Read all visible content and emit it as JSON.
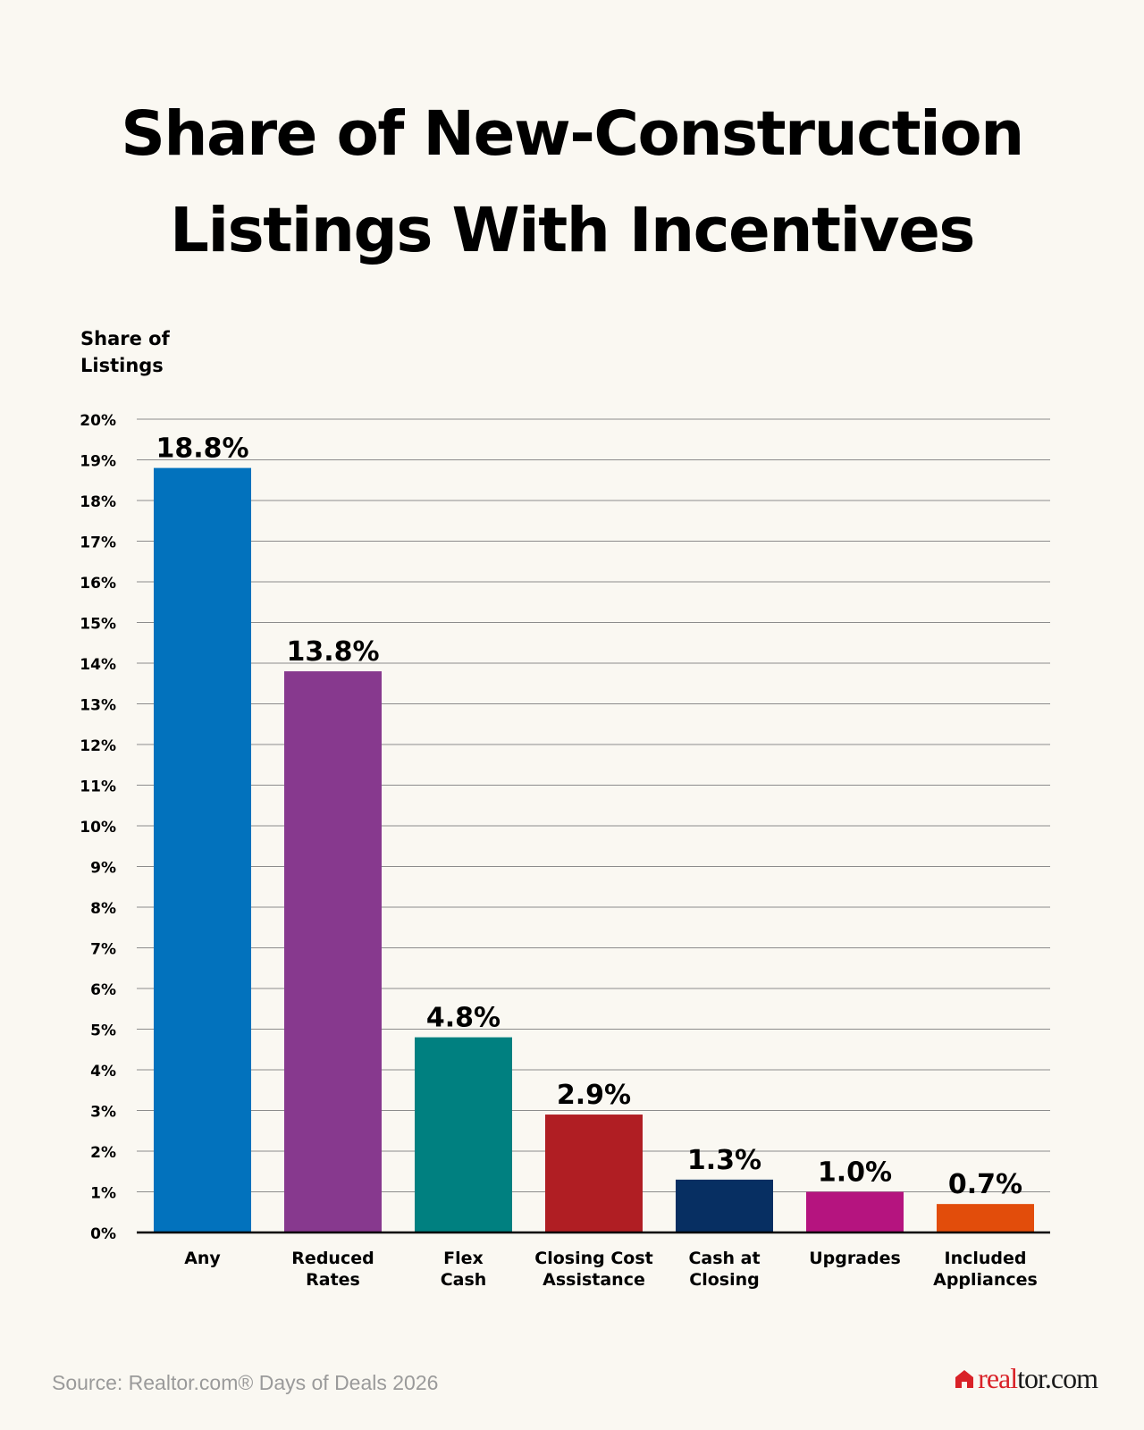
{
  "chart_data": {
    "type": "bar",
    "title_lines": [
      "Share of New-Construction",
      "Listings With Incentives"
    ],
    "ylabel_lines": [
      "Share of",
      "Listings"
    ],
    "ylim": [
      0,
      20
    ],
    "ytick_step": 1,
    "ytick_suffix": "%",
    "grid": true,
    "categories": [
      [
        "Any"
      ],
      [
        "Reduced",
        "Rates"
      ],
      [
        "Flex",
        "Cash"
      ],
      [
        "Closing Cost",
        "Assistance"
      ],
      [
        "Cash at",
        "Closing"
      ],
      [
        "Upgrades"
      ],
      [
        "Included",
        "Appliances"
      ]
    ],
    "values": [
      18.8,
      13.8,
      4.8,
      2.9,
      1.3,
      1.0,
      0.7
    ],
    "value_labels": [
      "18.8%",
      "13.8%",
      "4.8%",
      "2.9%",
      "1.3%",
      "1.0%",
      "0.7%"
    ],
    "colors": [
      "#0272bd",
      "#87398e",
      "#008080",
      "#b01e23",
      "#072f62",
      "#b5147f",
      "#e24d0b"
    ]
  },
  "footer": {
    "source": "Source: Realtor.com® Days of Deals 2026",
    "logo_real": "real",
    "logo_tor": "tor.com"
  }
}
